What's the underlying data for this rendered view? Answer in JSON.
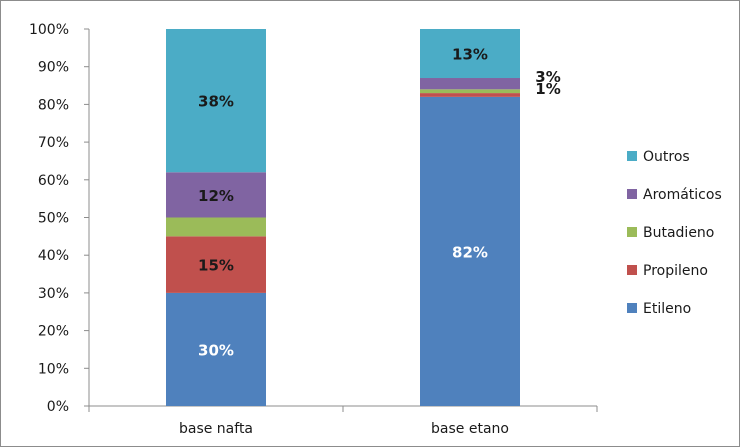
{
  "chart_data": {
    "type": "bar",
    "stacked": true,
    "categories": [
      "base nafta",
      "base etano"
    ],
    "series": [
      {
        "name": "Etileno",
        "color": "#4f81bd",
        "values": [
          30,
          82
        ],
        "labels": [
          "30%",
          "82%"
        ]
      },
      {
        "name": "Propileno",
        "color": "#c0504d",
        "values": [
          15,
          1
        ],
        "labels": [
          "15%",
          "1%"
        ]
      },
      {
        "name": "Butadieno",
        "color": "#9bbb59",
        "values": [
          5,
          1
        ],
        "labels": [
          "",
          ""
        ]
      },
      {
        "name": "Aromáticos",
        "color": "#8064a2",
        "values": [
          12,
          3
        ],
        "labels": [
          "12%",
          "3%"
        ]
      },
      {
        "name": "Outros",
        "color": "#4bacc6",
        "values": [
          38,
          13
        ],
        "labels": [
          "38%",
          "13%"
        ]
      }
    ],
    "yticks": [
      "0%",
      "10%",
      "20%",
      "30%",
      "40%",
      "50%",
      "60%",
      "70%",
      "80%",
      "90%",
      "100%"
    ],
    "ylim": [
      0,
      100
    ],
    "legend_position": "right",
    "grid": false,
    "title": "",
    "xlabel": "",
    "ylabel": ""
  }
}
